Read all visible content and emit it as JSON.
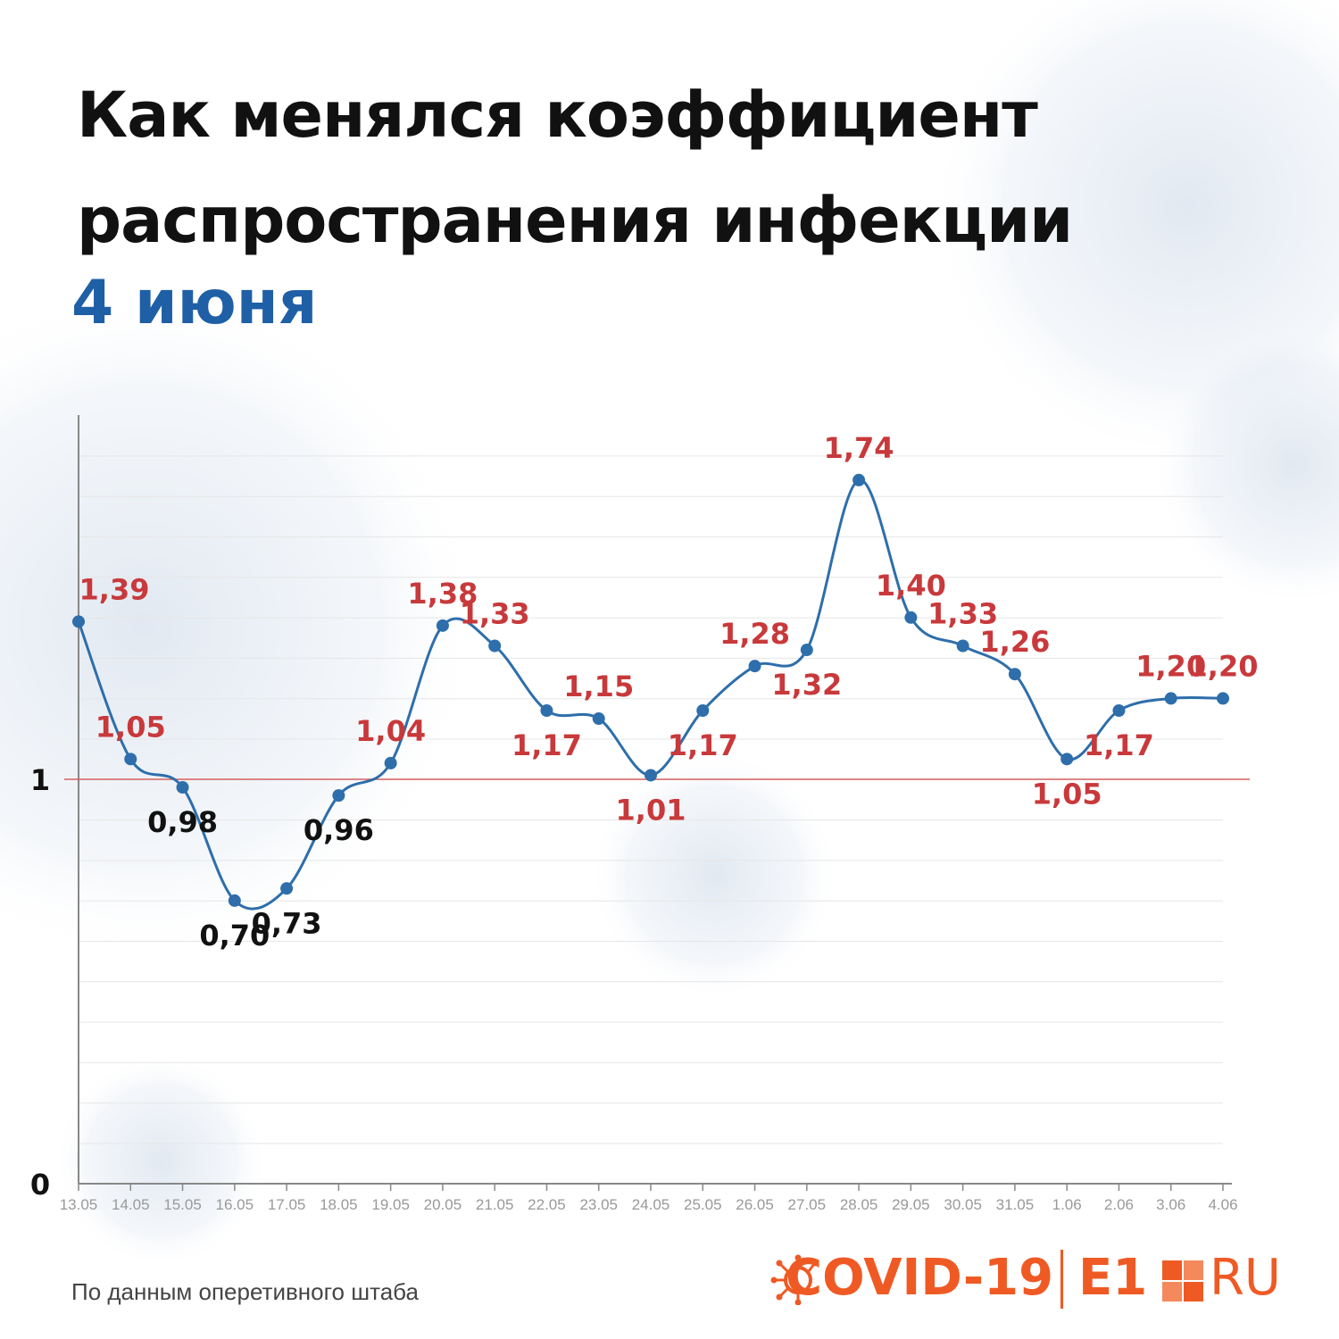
{
  "header": {
    "title_line1": "Как менялся коэффициент",
    "title_line2": "распространения инфекции",
    "date": "4 июня"
  },
  "footer": {
    "source": "По данным оперетивного штаба",
    "brand_covid": "COVID-19",
    "brand_e1": "E1",
    "brand_ru": "RU"
  },
  "colors": {
    "line": "#2e6eaa",
    "above_threshold_label": "#c8393b",
    "below_threshold_label": "#111111",
    "threshold_line": "#d66060",
    "brand": "#ef5a24"
  },
  "chart_data": {
    "type": "line",
    "title": "Как менялся коэффициент распространения инфекции",
    "subtitle": "4 июня",
    "xlabel": "",
    "ylabel": "",
    "categories": [
      "13.05",
      "14.05",
      "15.05",
      "16.05",
      "17.05",
      "18.05",
      "19.05",
      "20.05",
      "21.05",
      "22.05",
      "23.05",
      "24.05",
      "25.05",
      "26.05",
      "27.05",
      "28.05",
      "29.05",
      "30.05",
      "31.05",
      "1.06",
      "2.06",
      "3.06",
      "4.06"
    ],
    "values": [
      1.39,
      1.05,
      0.98,
      0.7,
      0.73,
      0.96,
      1.04,
      1.38,
      1.33,
      1.17,
      1.15,
      1.01,
      1.17,
      1.28,
      1.32,
      1.74,
      1.4,
      1.33,
      1.26,
      1.05,
      1.17,
      1.2,
      1.2
    ],
    "labels": [
      "1,39",
      "1,05",
      "0,98",
      "0,70",
      "0,73",
      "0,96",
      "1,04",
      "1,38",
      "1,33",
      "1,17",
      "1,15",
      "1,01",
      "1,17",
      "1,28",
      "1,32",
      "1,74",
      "1,40",
      "1,33",
      "1,26",
      "1,05",
      "1,17",
      "1,20",
      "1,20"
    ],
    "label_side": [
      "above",
      "above",
      "below",
      "below",
      "below",
      "below",
      "above",
      "above",
      "above",
      "below",
      "above",
      "below",
      "below",
      "above",
      "below",
      "above",
      "above",
      "above",
      "above",
      "below",
      "below",
      "above",
      "above"
    ],
    "yticks": [
      {
        "value": 0,
        "label": "0"
      },
      {
        "value": 1,
        "label": "1"
      }
    ],
    "ylim": [
      0,
      1.9
    ],
    "threshold": 1,
    "grid": true
  }
}
